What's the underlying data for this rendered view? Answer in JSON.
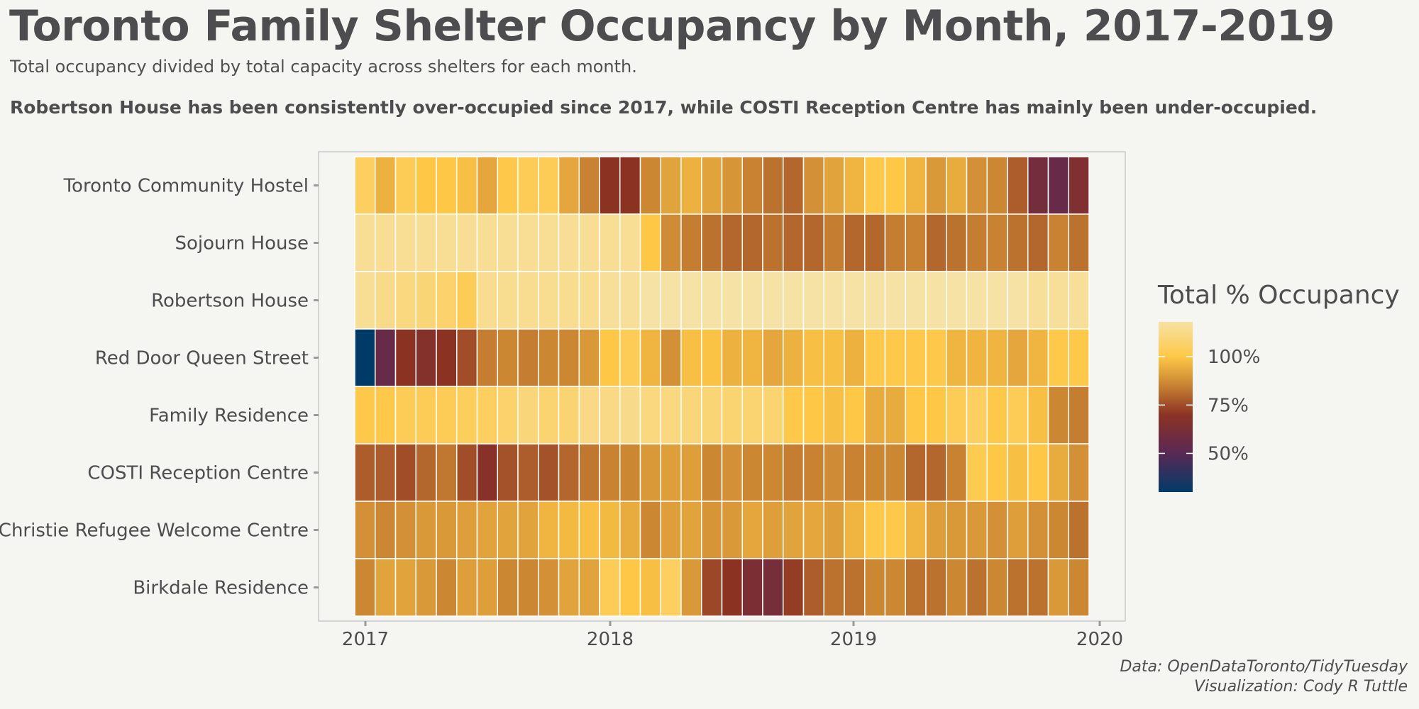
{
  "title": "Toronto Family Shelter Occupancy by Month, 2017-2019",
  "subtitle": "Total occupancy divided by total capacity across shelters for each month.",
  "highlight": "Robertson House has been consistently over-occupied since 2017, while COSTI Reception Centre has mainly been under-occupied.",
  "caption_line1": "Data: OpenDataToronto/TidyTuesday",
  "caption_line2": "Visualization: Cody R Tuttle",
  "chart_data": {
    "type": "heatmap",
    "title": "Toronto Family Shelter Occupancy by Month, 2017-2019",
    "subtitle": "Total occupancy divided by total capacity across shelters for each month.",
    "xlabel": "",
    "ylabel": "",
    "x_ticks": [
      "2017",
      "2018",
      "2019",
      "2020"
    ],
    "x": [
      "2017-01",
      "2017-02",
      "2017-03",
      "2017-04",
      "2017-05",
      "2017-06",
      "2017-07",
      "2017-08",
      "2017-09",
      "2017-10",
      "2017-11",
      "2017-12",
      "2018-01",
      "2018-02",
      "2018-03",
      "2018-04",
      "2018-05",
      "2018-06",
      "2018-07",
      "2018-08",
      "2018-09",
      "2018-10",
      "2018-11",
      "2018-12",
      "2019-01",
      "2019-02",
      "2019-03",
      "2019-04",
      "2019-05",
      "2019-06",
      "2019-07",
      "2019-08",
      "2019-09",
      "2019-10",
      "2019-11",
      "2019-12"
    ],
    "rows": [
      "Toronto Community Hostel",
      "Sojourn House",
      "Robertson House",
      "Red Door Queen Street",
      "Family Residence",
      "COSTI Reception Centre",
      "Christie Refugee Welcome Centre",
      "Birkdale Residence"
    ],
    "values": [
      [
        105,
        95,
        103,
        100,
        100,
        98,
        93,
        101,
        103,
        103,
        93,
        85,
        70,
        70,
        86,
        92,
        95,
        92,
        89,
        85,
        82,
        80,
        88,
        92,
        96,
        101,
        100,
        96,
        90,
        94,
        88,
        86,
        78,
        60,
        55,
        65
      ],
      [
        115,
        115,
        115,
        115,
        115,
        115,
        115,
        115,
        115,
        115,
        115,
        115,
        115,
        115,
        100,
        87,
        84,
        82,
        80,
        80,
        82,
        80,
        80,
        84,
        80,
        80,
        84,
        85,
        80,
        82,
        84,
        85,
        82,
        80,
        85,
        82
      ],
      [
        115,
        113,
        111,
        109,
        107,
        103,
        114,
        114,
        114,
        114,
        114,
        114,
        116,
        116,
        118,
        118,
        118,
        118,
        118,
        118,
        118,
        118,
        118,
        118,
        118,
        118,
        118,
        118,
        118,
        118,
        118,
        118,
        118,
        116,
        116,
        116
      ],
      [
        25,
        55,
        70,
        67,
        70,
        75,
        84,
        86,
        84,
        86,
        86,
        90,
        100,
        103,
        96,
        88,
        98,
        99,
        95,
        96,
        93,
        95,
        98,
        98,
        95,
        101,
        101,
        101,
        101,
        96,
        96,
        96,
        93,
        96,
        101,
        101
      ],
      [
        101,
        101,
        103,
        103,
        103,
        104,
        105,
        107,
        110,
        108,
        108,
        112,
        112,
        113,
        111,
        111,
        110,
        109,
        108,
        108,
        108,
        101,
        100,
        98,
        100,
        94,
        94,
        100,
        100,
        103,
        105,
        101,
        103,
        98,
        86,
        84
      ],
      [
        78,
        78,
        75,
        80,
        83,
        75,
        68,
        76,
        78,
        76,
        80,
        83,
        85,
        86,
        90,
        91,
        91,
        86,
        88,
        86,
        86,
        84,
        85,
        87,
        85,
        86,
        86,
        80,
        80,
        85,
        102,
        100,
        98,
        100,
        94,
        88
      ],
      [
        88,
        86,
        88,
        90,
        90,
        91,
        92,
        92,
        92,
        96,
        97,
        98,
        97,
        94,
        86,
        91,
        92,
        89,
        90,
        93,
        91,
        92,
        93,
        91,
        96,
        101,
        101,
        96,
        91,
        90,
        90,
        88,
        91,
        88,
        86,
        82
      ],
      [
        86,
        92,
        92,
        90,
        86,
        91,
        91,
        86,
        86,
        88,
        92,
        92,
        103,
        100,
        98,
        105,
        90,
        74,
        70,
        63,
        61,
        72,
        78,
        82,
        82,
        86,
        86,
        82,
        82,
        86,
        82,
        86,
        82,
        82,
        90,
        86
      ]
    ],
    "legend": {
      "title": "Total % Occupancy",
      "labels": [
        "100%",
        "75%",
        "50%"
      ],
      "label_values": [
        100,
        75,
        50
      ],
      "range": [
        30,
        118
      ]
    },
    "grid": false,
    "legend_position": "right"
  }
}
